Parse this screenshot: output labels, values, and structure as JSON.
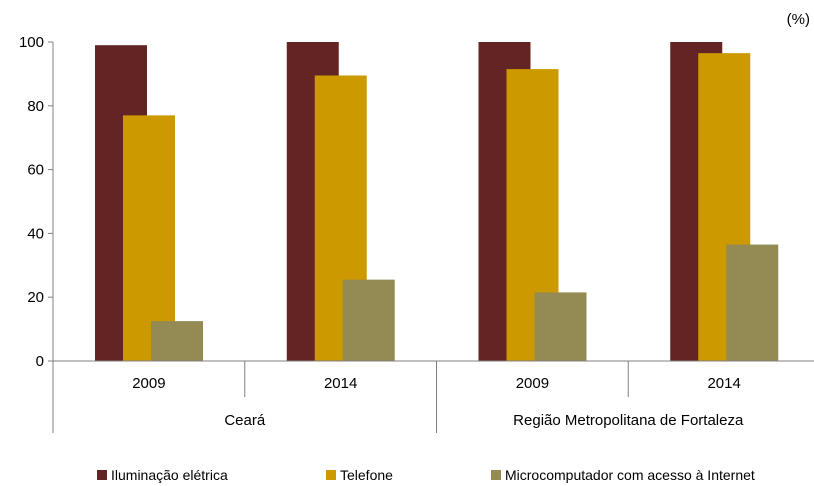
{
  "chart_data": {
    "type": "bar",
    "unit_label": "(%)",
    "ylim": [
      0,
      100
    ],
    "y_ticks": [
      0,
      20,
      40,
      60,
      80,
      100
    ],
    "grid": false,
    "legend_position": "bottom",
    "categories": [
      "2009",
      "2014",
      "2009",
      "2014"
    ],
    "groups": [
      {
        "label": "Ceará",
        "categories": [
          "2009",
          "2014"
        ]
      },
      {
        "label": "Região Metropolitana de Fortaleza",
        "categories": [
          "2009",
          "2014"
        ]
      }
    ],
    "series": [
      {
        "name": "Iluminação elétrica",
        "color": "#632523",
        "values": [
          99,
          100,
          100,
          100
        ]
      },
      {
        "name": "Telefone",
        "color": "#CC9900",
        "values": [
          77,
          89.5,
          91.5,
          96.5
        ]
      },
      {
        "name": "Microcomputador com acesso à Internet",
        "color": "#948A54",
        "values": [
          12.5,
          25.5,
          21.5,
          36.5
        ]
      }
    ]
  }
}
